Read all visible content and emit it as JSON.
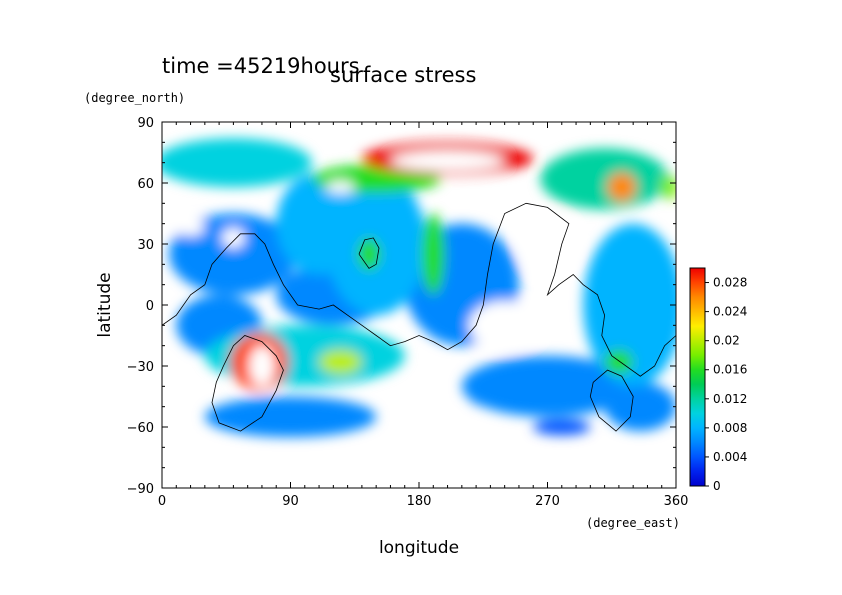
{
  "header": {
    "time_text": "time =45219hours",
    "title": "surface stress"
  },
  "chart_data": {
    "type": "heatmap",
    "title": "surface stress",
    "subtitle": "time =45219hours",
    "xlabel": "longitude",
    "ylabel": "latitude",
    "x_unit": "(degree_east)",
    "y_unit": "(degree_north)",
    "xlim": [
      0,
      360
    ],
    "ylim": [
      -90,
      90
    ],
    "x_ticks": [
      "0",
      "90",
      "180",
      "270",
      "360"
    ],
    "y_ticks": [
      "90",
      "60",
      "30",
      "0",
      "−30",
      "−60",
      "−90"
    ],
    "x_tick_values": [
      0,
      90,
      180,
      270,
      360
    ],
    "y_tick_values": [
      90,
      60,
      30,
      0,
      -30,
      -60,
      -90
    ],
    "colorbar": {
      "range": [
        0,
        0.03
      ],
      "tick_values": [
        0,
        0.004,
        0.008,
        0.012,
        0.016,
        0.02,
        0.024,
        0.028
      ],
      "tick_labels": [
        "0",
        "0.004",
        "0.008",
        "0.012",
        "0.016",
        "0.02",
        "0.024",
        "0.028"
      ],
      "colors": [
        "#ffffff",
        "#0000cc",
        "#0022ee",
        "#0055ff",
        "#0088ff",
        "#00b4ff",
        "#00d2e0",
        "#00d2a0",
        "#00cc55",
        "#22dd22",
        "#77ee00",
        "#bbee00",
        "#ffee00",
        "#ffbb00",
        "#ff8800",
        "#ff4400",
        "#ee0000"
      ]
    },
    "field_blobs": [
      {
        "lon": 50,
        "lat": 70,
        "rx": 55,
        "ry": 12,
        "value": 0.01
      },
      {
        "lon": 200,
        "lat": 72,
        "rx": 60,
        "ry": 8,
        "value": 0.03
      },
      {
        "lon": 150,
        "lat": 62,
        "rx": 45,
        "ry": 7,
        "value": 0.016
      },
      {
        "lon": 310,
        "lat": 62,
        "rx": 45,
        "ry": 15,
        "value": 0.012
      },
      {
        "lon": 322,
        "lat": 58,
        "rx": 10,
        "ry": 7,
        "value": 0.026
      },
      {
        "lon": 355,
        "lat": 58,
        "rx": 6,
        "ry": 6,
        "value": 0.018
      },
      {
        "lon": 110,
        "lat": 40,
        "rx": 30,
        "ry": 25,
        "value": 0.008
      },
      {
        "lon": 150,
        "lat": 30,
        "rx": 35,
        "ry": 35,
        "value": 0.008
      },
      {
        "lon": 145,
        "lat": 25,
        "rx": 8,
        "ry": 8,
        "value": 0.016
      },
      {
        "lon": 190,
        "lat": 25,
        "rx": 8,
        "ry": 20,
        "value": 0.016
      },
      {
        "lon": 50,
        "lat": 25,
        "rx": 45,
        "ry": 20,
        "value": 0.005
      },
      {
        "lon": 210,
        "lat": 10,
        "rx": 40,
        "ry": 30,
        "value": 0.006
      },
      {
        "lon": 120,
        "lat": 5,
        "rx": 40,
        "ry": 15,
        "value": 0.005
      },
      {
        "lon": 330,
        "lat": 0,
        "rx": 35,
        "ry": 40,
        "value": 0.008
      },
      {
        "lon": 40,
        "lat": -10,
        "rx": 30,
        "ry": 15,
        "value": 0.006
      },
      {
        "lon": 100,
        "lat": -25,
        "rx": 70,
        "ry": 15,
        "value": 0.01
      },
      {
        "lon": 68,
        "lat": -28,
        "rx": 20,
        "ry": 14,
        "value": 0.028
      },
      {
        "lon": 125,
        "lat": -28,
        "rx": 15,
        "ry": 6,
        "value": 0.02
      },
      {
        "lon": 320,
        "lat": -28,
        "rx": 10,
        "ry": 6,
        "value": 0.016
      },
      {
        "lon": 270,
        "lat": -40,
        "rx": 60,
        "ry": 15,
        "value": 0.005
      },
      {
        "lon": 90,
        "lat": -55,
        "rx": 60,
        "ry": 10,
        "value": 0.005
      },
      {
        "lon": 230,
        "lat": -45,
        "rx": 15,
        "ry": 5,
        "value": 0.004
      },
      {
        "lon": 280,
        "lat": -60,
        "rx": 20,
        "ry": 4,
        "value": 0.004
      },
      {
        "lon": 335,
        "lat": -50,
        "rx": 25,
        "ry": 12,
        "value": 0.005
      }
    ],
    "field_holes": [
      {
        "lon": 200,
        "lat": 71,
        "rx": 40,
        "ry": 5
      },
      {
        "lon": 70,
        "lat": -30,
        "rx": 9,
        "ry": 10
      },
      {
        "lon": 20,
        "lat": 38,
        "rx": 10,
        "ry": 4
      },
      {
        "lon": 50,
        "lat": 33,
        "rx": 8,
        "ry": 5
      },
      {
        "lon": 125,
        "lat": 58,
        "rx": 10,
        "ry": 3
      },
      {
        "lon": 270,
        "lat": 30,
        "rx": 20,
        "ry": 15
      },
      {
        "lon": 240,
        "lat": -10,
        "rx": 25,
        "ry": 12
      }
    ],
    "coastlines": [
      [
        [
          0,
          -10
        ],
        [
          10,
          -5
        ],
        [
          20,
          5
        ],
        [
          30,
          10
        ],
        [
          35,
          20
        ],
        [
          45,
          28
        ],
        [
          55,
          35
        ],
        [
          65,
          35
        ],
        [
          72,
          30
        ],
        [
          78,
          20
        ],
        [
          85,
          10
        ],
        [
          95,
          0
        ],
        [
          110,
          -2
        ],
        [
          120,
          0
        ],
        [
          130,
          -5
        ],
        [
          140,
          -10
        ],
        [
          150,
          -15
        ],
        [
          160,
          -20
        ],
        [
          170,
          -18
        ],
        [
          180,
          -15
        ],
        [
          190,
          -18
        ],
        [
          200,
          -22
        ],
        [
          210,
          -18
        ],
        [
          220,
          -10
        ],
        [
          225,
          0
        ],
        [
          228,
          15
        ],
        [
          232,
          30
        ],
        [
          240,
          45
        ],
        [
          255,
          50
        ],
        [
          270,
          48
        ],
        [
          285,
          40
        ],
        [
          280,
          30
        ],
        [
          275,
          15
        ],
        [
          270,
          5
        ],
        [
          278,
          10
        ],
        [
          288,
          15
        ],
        [
          295,
          10
        ],
        [
          305,
          5
        ],
        [
          310,
          -5
        ],
        [
          308,
          -15
        ],
        [
          315,
          -25
        ],
        [
          325,
          -30
        ],
        [
          335,
          -35
        ],
        [
          345,
          -30
        ],
        [
          352,
          -20
        ],
        [
          360,
          -15
        ]
      ],
      [
        [
          43,
          -30
        ],
        [
          50,
          -20
        ],
        [
          58,
          -15
        ],
        [
          70,
          -18
        ],
        [
          80,
          -25
        ],
        [
          85,
          -32
        ],
        [
          80,
          -42
        ],
        [
          70,
          -55
        ],
        [
          55,
          -62
        ],
        [
          40,
          -58
        ],
        [
          35,
          -48
        ],
        [
          38,
          -38
        ],
        [
          43,
          -30
        ]
      ],
      [
        [
          138,
          25
        ],
        [
          142,
          32
        ],
        [
          148,
          33
        ],
        [
          152,
          28
        ],
        [
          150,
          20
        ],
        [
          145,
          18
        ],
        [
          138,
          25
        ]
      ],
      [
        [
          306,
          -55
        ],
        [
          300,
          -45
        ],
        [
          302,
          -38
        ],
        [
          312,
          -32
        ],
        [
          322,
          -35
        ],
        [
          330,
          -45
        ],
        [
          328,
          -55
        ],
        [
          318,
          -62
        ],
        [
          306,
          -55
        ]
      ]
    ]
  }
}
